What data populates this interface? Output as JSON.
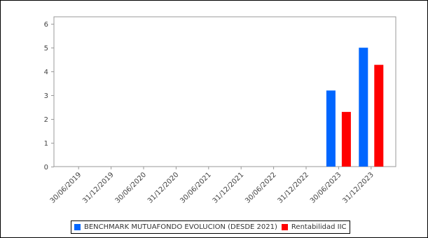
{
  "chart_data": {
    "type": "bar",
    "categories": [
      "30/06/2019",
      "31/12/2019",
      "30/06/2020",
      "31/12/2020",
      "30/06/2021",
      "31/12/2021",
      "30/06/2022",
      "31/12/2022",
      "30/06/2023",
      "31/12/2023"
    ],
    "series": [
      {
        "name": "BENCHMARK MUTUAFONDO EVOLUCION (DESDE 2021)",
        "color": "#0066ff",
        "values": [
          null,
          null,
          null,
          null,
          null,
          null,
          null,
          null,
          3.2,
          5.0
        ]
      },
      {
        "name": "Rentabilidad IIC",
        "color": "#ff0000",
        "values": [
          null,
          null,
          null,
          null,
          null,
          null,
          null,
          null,
          2.3,
          4.28
        ]
      }
    ],
    "ylim": [
      0,
      6.3
    ],
    "yticks": [
      0,
      1,
      2,
      3,
      4,
      5,
      6
    ],
    "title": "",
    "xlabel": "",
    "ylabel": "",
    "grid": false,
    "legend": "bottom"
  }
}
